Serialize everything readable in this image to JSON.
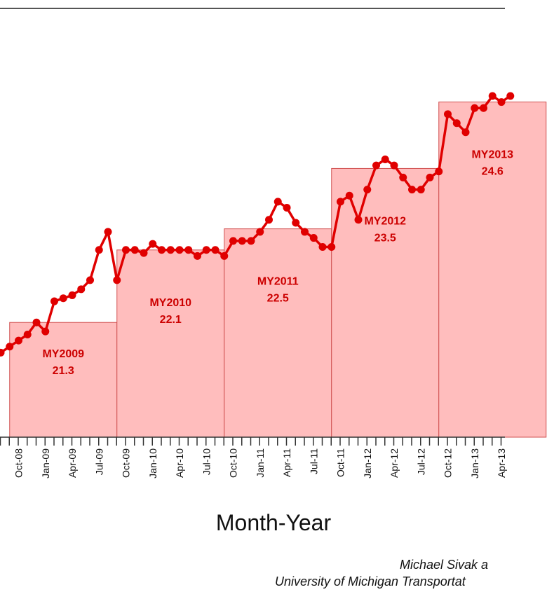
{
  "chart_data": {
    "type": "line",
    "xlabel": "Month-Year",
    "ylim": [
      19.4,
      26.5
    ],
    "x_ticks": [
      "Oct-08",
      "Jan-09",
      "Apr-09",
      "Jul-09",
      "Oct-09",
      "Jan-10",
      "Apr-10",
      "Jul-10",
      "Oct-10",
      "Jan-11",
      "Apr-11",
      "Jul-11",
      "Oct-11",
      "Jan-12",
      "Apr-12",
      "Jul-12",
      "Oct-12",
      "Jan-13",
      "Apr-13"
    ],
    "series": [
      {
        "kind": "monthly",
        "color": "#e00000",
        "start": "Aug-08",
        "values": [
          20.8,
          20.9,
          21.0,
          21.1,
          21.3,
          21.15,
          21.65,
          21.7,
          21.75,
          21.85,
          22.0,
          22.5,
          22.8,
          22.0,
          22.5,
          22.5,
          22.45,
          22.6,
          22.5,
          22.5,
          22.5,
          22.5,
          22.4,
          22.5,
          22.5,
          22.4,
          22.65,
          22.65,
          22.65,
          22.8,
          23.0,
          23.3,
          23.2,
          22.95,
          22.8,
          22.7,
          22.55,
          22.55,
          23.3,
          23.4,
          23.0,
          23.5,
          23.9,
          24.0,
          23.9,
          23.7,
          23.5,
          23.5,
          23.7,
          23.8,
          24.75,
          24.6,
          24.45,
          24.85,
          24.85,
          25.05,
          24.95,
          25.05
        ]
      }
    ],
    "model_years": [
      {
        "label": "MY2009",
        "value": "21.3",
        "y": 21.3,
        "start": "Sep-08",
        "end": "Sep-09"
      },
      {
        "label": "MY2010",
        "value": "22.1",
        "y": 22.5,
        "start": "Sep-09",
        "end": "Sep-10"
      },
      {
        "label": "MY2011",
        "value": "22.5",
        "y": 22.85,
        "start": "Sep-10",
        "end": "Sep-11"
      },
      {
        "label": "MY2012",
        "value": "23.5",
        "y": 23.85,
        "start": "Sep-11",
        "end": "Sep-12"
      },
      {
        "label": "MY2013",
        "value": "24.6",
        "y": 24.95,
        "start": "Sep-12",
        "end": "Sep-13"
      }
    ],
    "colors": {
      "bar_fill": "#ffbdbd",
      "bar_stroke": "#d05050",
      "line": "#e00000",
      "label": "#cc0000"
    }
  },
  "xlabel": "Month-Year",
  "credit_line1": "Michael Sivak a",
  "credit_line2": "University of Michigan Transportat"
}
